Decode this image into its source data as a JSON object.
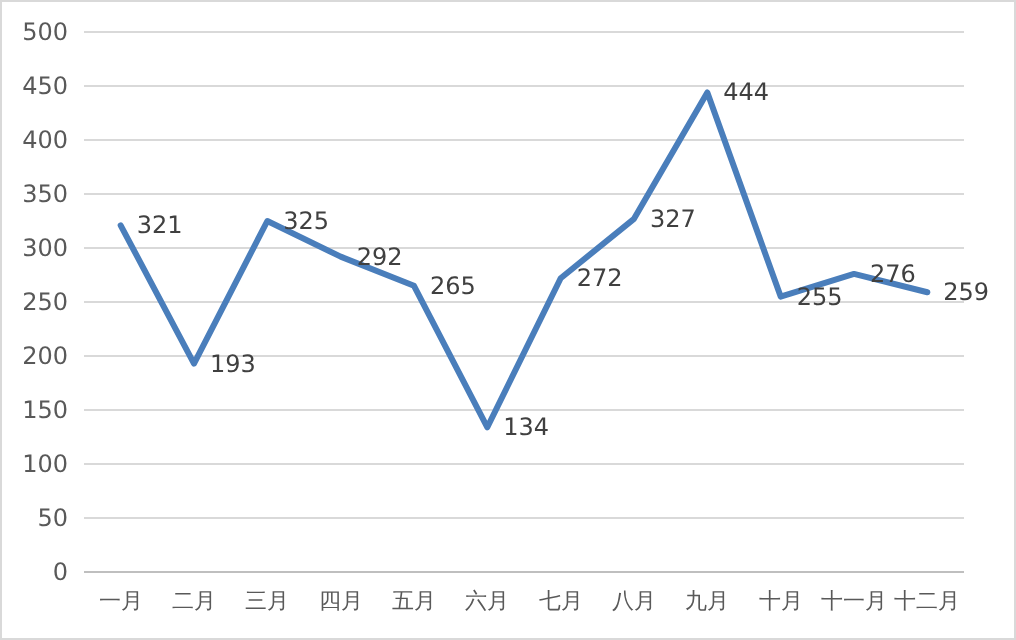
{
  "chart_data": {
    "type": "line",
    "categories": [
      "一月",
      "二月",
      "三月",
      "四月",
      "五月",
      "六月",
      "七月",
      "八月",
      "九月",
      "十月",
      "十一月",
      "十二月"
    ],
    "series": [
      {
        "color": "#4a7ebb",
        "values": [
          321,
          193,
          325,
          292,
          265,
          134,
          272,
          327,
          444,
          255,
          276,
          259
        ]
      }
    ],
    "ylim": [
      0,
      500
    ],
    "yticks": [
      0,
      50,
      100,
      150,
      200,
      250,
      300,
      350,
      400,
      450,
      500
    ],
    "grid": "y",
    "data_labels": true,
    "marker": "none",
    "line_style": "solid"
  }
}
